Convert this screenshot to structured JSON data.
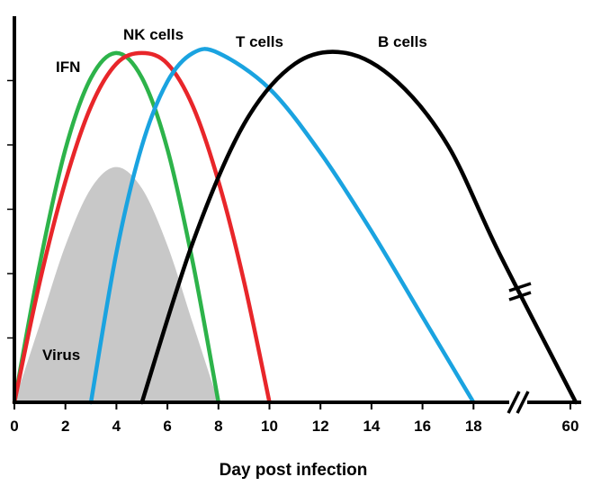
{
  "chart_data": {
    "type": "line",
    "title": "",
    "xlabel": "Day post infection",
    "ylabel": "",
    "x_ticks": [
      "0",
      "2",
      "4",
      "6",
      "8",
      "10",
      "12",
      "14",
      "16",
      "18",
      "60"
    ],
    "axis_break": "between 18 and 60 on the x axis",
    "ylim": [
      0,
      1
    ],
    "grid": false,
    "legend": "none (series labeled directly)",
    "series": [
      {
        "name": "Virus",
        "kind": "filled area",
        "color": "#c8c8c8",
        "x": [
          0,
          1,
          2,
          3,
          4,
          5,
          6,
          7,
          8
        ],
        "y": [
          0.0,
          0.22,
          0.44,
          0.6,
          0.66,
          0.6,
          0.44,
          0.22,
          0.0
        ]
      },
      {
        "name": "IFN",
        "color": "#2db34a",
        "x": [
          0,
          1,
          2,
          3,
          4,
          5,
          6,
          7,
          8
        ],
        "y": [
          0.0,
          0.39,
          0.71,
          0.91,
          0.98,
          0.91,
          0.71,
          0.39,
          0.0
        ]
      },
      {
        "name": "NK cells",
        "color": "#e8262a",
        "x": [
          0,
          1,
          2,
          3,
          4,
          5,
          6,
          7,
          8,
          9,
          10
        ],
        "y": [
          0.0,
          0.34,
          0.62,
          0.83,
          0.95,
          0.98,
          0.95,
          0.83,
          0.62,
          0.34,
          0.0
        ]
      },
      {
        "name": "T cells",
        "color": "#1aa3e0",
        "x": [
          3,
          4,
          5,
          6,
          7,
          8,
          10,
          12,
          14,
          16,
          18
        ],
        "y": [
          0.0,
          0.42,
          0.72,
          0.9,
          0.98,
          0.98,
          0.88,
          0.7,
          0.48,
          0.24,
          0.0
        ]
      },
      {
        "name": "B cells",
        "color": "#000000",
        "x": [
          5,
          7,
          9,
          11,
          13,
          15,
          17,
          19,
          60
        ],
        "y": [
          0.0,
          0.45,
          0.78,
          0.95,
          0.98,
          0.9,
          0.72,
          0.42,
          0.0
        ]
      }
    ]
  }
}
